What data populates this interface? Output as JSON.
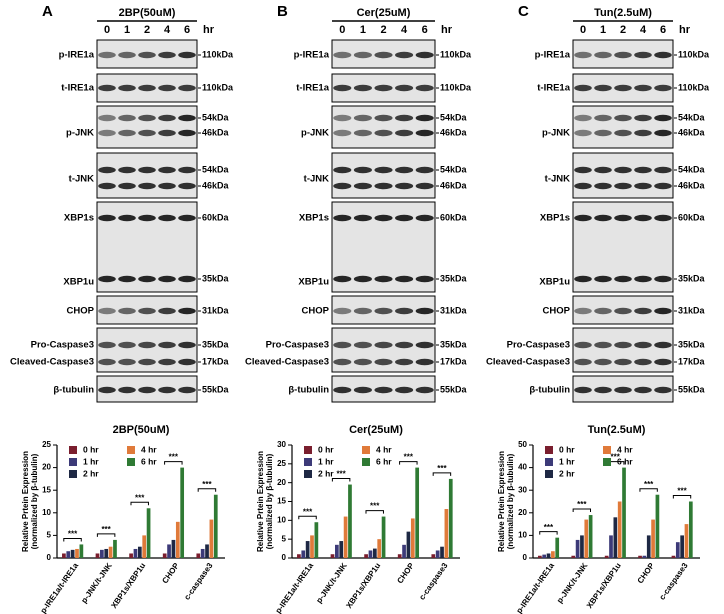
{
  "figure": {
    "panels": [
      {
        "label": "A",
        "treatment": "2BP(50uM)",
        "time_unit": "hr",
        "timepoints": [
          0,
          1,
          2,
          4,
          6
        ],
        "blots": [
          {
            "labels": [
              "p-IRE1a"
            ],
            "markers": [
              "110kDa"
            ]
          },
          {
            "labels": [
              "t-IRE1a"
            ],
            "markers": [
              "110kDa"
            ]
          },
          {
            "labels": [
              "p-JNK"
            ],
            "markers": [
              "54kDa",
              "46kDa"
            ]
          },
          {
            "labels": [
              "t-JNK"
            ],
            "markers": [
              "54kDa",
              "46kDa"
            ]
          },
          {
            "labels": [
              "XBP1s",
              "XBP1u"
            ],
            "markers": [
              "60kDa",
              "35kDa"
            ]
          },
          {
            "labels": [
              "CHOP"
            ],
            "markers": [
              "31kDa"
            ]
          },
          {
            "labels": [
              "Pro-Caspase3",
              "Cleaved-Caspase3"
            ],
            "markers": [
              "35kDa",
              "17kDa"
            ]
          },
          {
            "labels": [
              "β-tubulin"
            ],
            "markers": [
              "55kDa"
            ]
          }
        ]
      },
      {
        "label": "B",
        "treatment": "Cer(25uM)",
        "time_unit": "hr",
        "timepoints": [
          0,
          1,
          2,
          4,
          6
        ],
        "blots": [
          {
            "labels": [
              "p-IRE1a"
            ],
            "markers": [
              "110kDa"
            ]
          },
          {
            "labels": [
              "t-IRE1a"
            ],
            "markers": [
              "110kDa"
            ]
          },
          {
            "labels": [
              "p-JNK"
            ],
            "markers": [
              "54kDa",
              "46kDa"
            ]
          },
          {
            "labels": [
              "t-JNK"
            ],
            "markers": [
              "54kDa",
              "46kDa"
            ]
          },
          {
            "labels": [
              "XBP1s",
              "XBP1u"
            ],
            "markers": [
              "60kDa",
              "35kDa"
            ]
          },
          {
            "labels": [
              "CHOP"
            ],
            "markers": [
              "31kDa"
            ]
          },
          {
            "labels": [
              "Pro-Caspase3",
              "Cleaved-Caspase3"
            ],
            "markers": [
              "35kDa",
              "17kDa"
            ]
          },
          {
            "labels": [
              "β-tubulin"
            ],
            "markers": [
              "55kDa"
            ]
          }
        ]
      },
      {
        "label": "C",
        "treatment": "Tun(2.5uM)",
        "time_unit": "hr",
        "timepoints": [
          0,
          1,
          2,
          4,
          6
        ],
        "blots": [
          {
            "labels": [
              "p-IRE1a"
            ],
            "markers": [
              "110kDa"
            ]
          },
          {
            "labels": [
              "t-IRE1a"
            ],
            "markers": [
              "110kDa"
            ]
          },
          {
            "labels": [
              "p-JNK"
            ],
            "markers": [
              "54kDa",
              "46kDa"
            ]
          },
          {
            "labels": [
              "t-JNK"
            ],
            "markers": [
              "54kDa",
              "46kDa"
            ]
          },
          {
            "labels": [
              "XBP1s",
              "XBP1u"
            ],
            "markers": [
              "60kDa",
              "35kDa"
            ]
          },
          {
            "labels": [
              "CHOP"
            ],
            "markers": [
              "31kDa"
            ]
          },
          {
            "labels": [
              "Pro-Caspase3",
              "Cleaved-Caspase3"
            ],
            "markers": [
              "35kDa",
              "17kDa"
            ]
          },
          {
            "labels": [
              "β-tubulin"
            ],
            "markers": [
              "55kDa"
            ]
          }
        ]
      }
    ]
  },
  "chart_data": [
    {
      "type": "bar",
      "title": "2BP(50uM)",
      "y_label": [
        "Relative Prtein Expression",
        "(normalized by β-tubulin)"
      ],
      "categories": [
        "p-IRE1a/t-IRE1a",
        "p-JNK/t-JNK",
        "XBP1s/XBP1u",
        "CHOP",
        "c-caspase3"
      ],
      "ylim": [
        0,
        25
      ],
      "yticks": [
        0,
        5,
        10,
        15,
        20,
        25
      ],
      "significance": [
        "***",
        "***",
        "***",
        "***",
        "***"
      ],
      "series": [
        {
          "name": "0 hr",
          "color": "#7a1e2e",
          "values": [
            1,
            1,
            1,
            1,
            1
          ]
        },
        {
          "name": "1 hr",
          "color": "#3c3a78",
          "values": [
            1.5,
            1.8,
            2,
            3,
            2
          ]
        },
        {
          "name": "2 hr",
          "color": "#1e2844",
          "values": [
            1.8,
            2,
            2.5,
            4,
            3
          ]
        },
        {
          "name": "4 hr",
          "color": "#e07a3a",
          "values": [
            2,
            2.5,
            5,
            8,
            8.5
          ]
        },
        {
          "name": "6 hr",
          "color": "#2f7a34",
          "values": [
            3,
            4,
            11,
            20,
            14
          ]
        }
      ]
    },
    {
      "type": "bar",
      "title": "Cer(25uM)",
      "y_label": [
        "Relative Prtein Expression",
        "(normalized by β-tubulin)"
      ],
      "categories": [
        "p-IRE1a/t-IRE1a",
        "p-JNK/t-JNK",
        "XBP1s/XBP1u",
        "CHOP",
        "c-caspase3"
      ],
      "ylim": [
        0,
        30
      ],
      "yticks": [
        0,
        5,
        10,
        15,
        20,
        25,
        30
      ],
      "significance": [
        "***",
        "***",
        "***",
        "***",
        "***"
      ],
      "series": [
        {
          "name": "0 hr",
          "color": "#7a1e2e",
          "values": [
            1,
            1,
            1,
            1,
            1
          ]
        },
        {
          "name": "1 hr",
          "color": "#3c3a78",
          "values": [
            2,
            3.5,
            2,
            3.5,
            2
          ]
        },
        {
          "name": "2 hr",
          "color": "#1e2844",
          "values": [
            4.5,
            4.5,
            2.5,
            7,
            3
          ]
        },
        {
          "name": "4 hr",
          "color": "#e07a3a",
          "values": [
            6,
            11,
            5,
            10.5,
            13
          ]
        },
        {
          "name": "6 hr",
          "color": "#2f7a34",
          "values": [
            9.5,
            19.5,
            11,
            24,
            21
          ]
        }
      ]
    },
    {
      "type": "bar",
      "title": "Tun(2.5uM)",
      "y_label": [
        "Relative Prtein Expression",
        "(normalized by β-tubulin)"
      ],
      "categories": [
        "p-IRE1a/t-IRE1a",
        "p-JNK/t-JNK",
        "XBP1s/XBP1u",
        "CHOP",
        "c-caspase3"
      ],
      "ylim": [
        0,
        50
      ],
      "yticks": [
        0,
        10,
        20,
        30,
        40,
        50
      ],
      "significance": [
        "***",
        "***",
        "***",
        "***",
        "***"
      ],
      "series": [
        {
          "name": "0 hr",
          "color": "#7a1e2e",
          "values": [
            1,
            1,
            1,
            1,
            1
          ]
        },
        {
          "name": "1 hr",
          "color": "#3c3a78",
          "values": [
            1.5,
            8,
            10,
            1,
            7
          ]
        },
        {
          "name": "2 hr",
          "color": "#1e2844",
          "values": [
            2,
            10,
            18,
            10,
            10
          ]
        },
        {
          "name": "4 hr",
          "color": "#e07a3a",
          "values": [
            3,
            17,
            25,
            17,
            15
          ]
        },
        {
          "name": "6 hr",
          "color": "#2f7a34",
          "values": [
            9,
            19,
            40,
            28,
            25
          ]
        }
      ]
    }
  ]
}
